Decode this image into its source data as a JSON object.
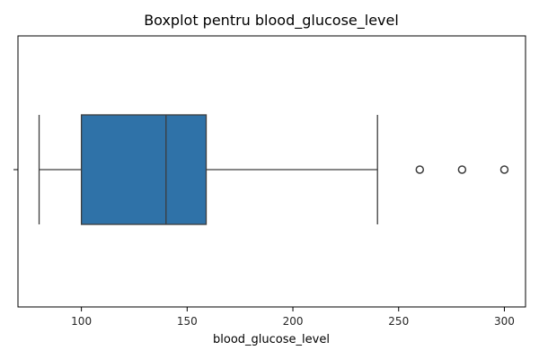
{
  "chart_data": {
    "type": "boxplot",
    "title": "Boxplot pentru blood_glucose_level",
    "xlabel": "blood_glucose_level",
    "ylabel": "",
    "orientation": "horizontal",
    "xlim": [
      70,
      310
    ],
    "xticks": [
      100,
      150,
      200,
      250,
      300
    ],
    "grid": false,
    "box": {
      "whisker_low": 80,
      "q1": 100,
      "median": 140,
      "q3": 159,
      "whisker_high": 240,
      "outliers": [
        260,
        280,
        300
      ]
    },
    "colors": {
      "box_fill": "#2f72a8",
      "line": "#3d3d3d",
      "axis": "#000000"
    }
  }
}
